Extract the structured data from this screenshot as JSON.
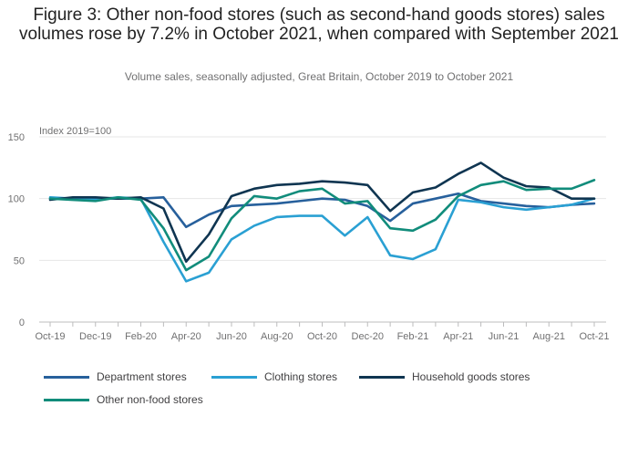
{
  "chart_data": {
    "type": "line",
    "title": "Figure 3: Other non-food stores (such as second-hand goods stores) sales volumes rose by 7.2% in October 2021, when compared with September 2021",
    "subtitle": "Volume sales, seasonally adjusted, Great Britain, October 2019 to October 2021",
    "ylabel": "Index 2019=100",
    "ylim": [
      0,
      150
    ],
    "yticks": [
      0,
      50,
      100,
      150
    ],
    "x": [
      "Oct-19",
      "Nov-19",
      "Dec-19",
      "Jan-20",
      "Feb-20",
      "Mar-20",
      "Apr-20",
      "May-20",
      "Jun-20",
      "Jul-20",
      "Aug-20",
      "Sep-20",
      "Oct-20",
      "Nov-20",
      "Dec-20",
      "Jan-21",
      "Feb-21",
      "Mar-21",
      "Apr-21",
      "May-21",
      "Jun-21",
      "Jul-21",
      "Aug-21",
      "Sep-21",
      "Oct-21"
    ],
    "xtick_labels": [
      "Oct-19",
      "Dec-19",
      "Feb-20",
      "Apr-20",
      "Jun-20",
      "Aug-20",
      "Oct-20",
      "Dec-20",
      "Feb-21",
      "Apr-21",
      "Jun-21",
      "Aug-21",
      "Oct-21"
    ],
    "series": [
      {
        "name": "Department stores",
        "color": "#27609c",
        "values": [
          100,
          100,
          100,
          100,
          100,
          101,
          77,
          87,
          94,
          95,
          96,
          98,
          100,
          99,
          94,
          82,
          96,
          100,
          104,
          98,
          96,
          94,
          93,
          95,
          96
        ]
      },
      {
        "name": "Clothing stores",
        "color": "#2aa0d3",
        "values": [
          101,
          100,
          99,
          101,
          100,
          65,
          33,
          40,
          67,
          78,
          85,
          86,
          86,
          70,
          85,
          54,
          51,
          59,
          99,
          97,
          93,
          91,
          93,
          95,
          100
        ]
      },
      {
        "name": "Household goods stores",
        "color": "#0f3551",
        "values": [
          99,
          101,
          101,
          100,
          101,
          92,
          49,
          71,
          102,
          108,
          111,
          112,
          114,
          113,
          111,
          90,
          105,
          109,
          120,
          129,
          117,
          110,
          109,
          100,
          100
        ]
      },
      {
        "name": "Other non-food stores",
        "color": "#118c7b",
        "values": [
          100,
          99,
          98,
          101,
          99,
          76,
          42,
          53,
          84,
          102,
          100,
          106,
          108,
          96,
          98,
          76,
          74,
          83,
          102,
          111,
          114,
          107,
          108,
          108,
          115
        ]
      }
    ],
    "legend": "bottom"
  }
}
